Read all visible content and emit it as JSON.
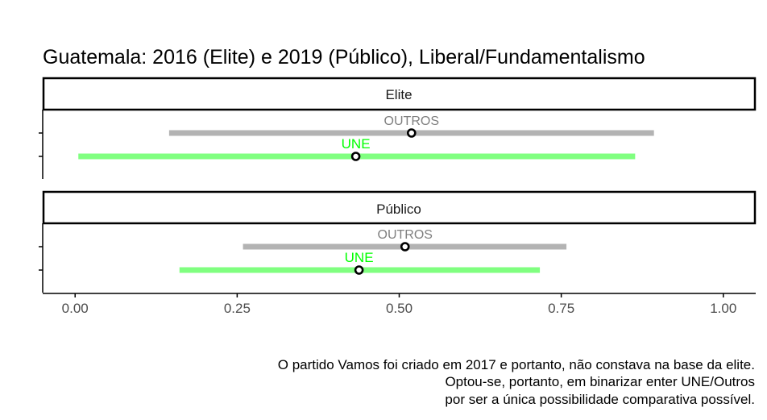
{
  "chart_data": {
    "type": "interval",
    "title": "Guatemala: 2016 (Elite) e 2019 (Público), Liberal/Fundamentalismo",
    "xlim": [
      -0.05,
      1.05
    ],
    "x_ticks": [
      0.0,
      0.25,
      0.5,
      0.75,
      1.0
    ],
    "x_tick_labels": [
      "0.00",
      "0.25",
      "0.50",
      "0.75",
      "1.00"
    ],
    "colors": {
      "OUTROS": "#b3b3b3",
      "UNE": "#80ff80",
      "OUTROS_label": "#7f7f7f",
      "UNE_label": "#00ff00"
    },
    "panels": [
      {
        "strip": "Elite",
        "series": [
          {
            "name": "OUTROS",
            "low": 0.145,
            "point": 0.519,
            "high": 0.893
          },
          {
            "name": "UNE",
            "low": 0.005,
            "point": 0.433,
            "high": 0.864
          }
        ]
      },
      {
        "strip": "Público",
        "series": [
          {
            "name": "OUTROS",
            "low": 0.259,
            "point": 0.509,
            "high": 0.758
          },
          {
            "name": "UNE",
            "low": 0.161,
            "point": 0.438,
            "high": 0.717
          }
        ]
      }
    ],
    "caption": [
      "O partido Vamos foi criado em 2017 e portanto, não constava na base da elite.",
      "Optou-se, portanto, em binarizar enter UNE/Outros",
      "por ser a única possibilidade comparativa possível."
    ]
  }
}
